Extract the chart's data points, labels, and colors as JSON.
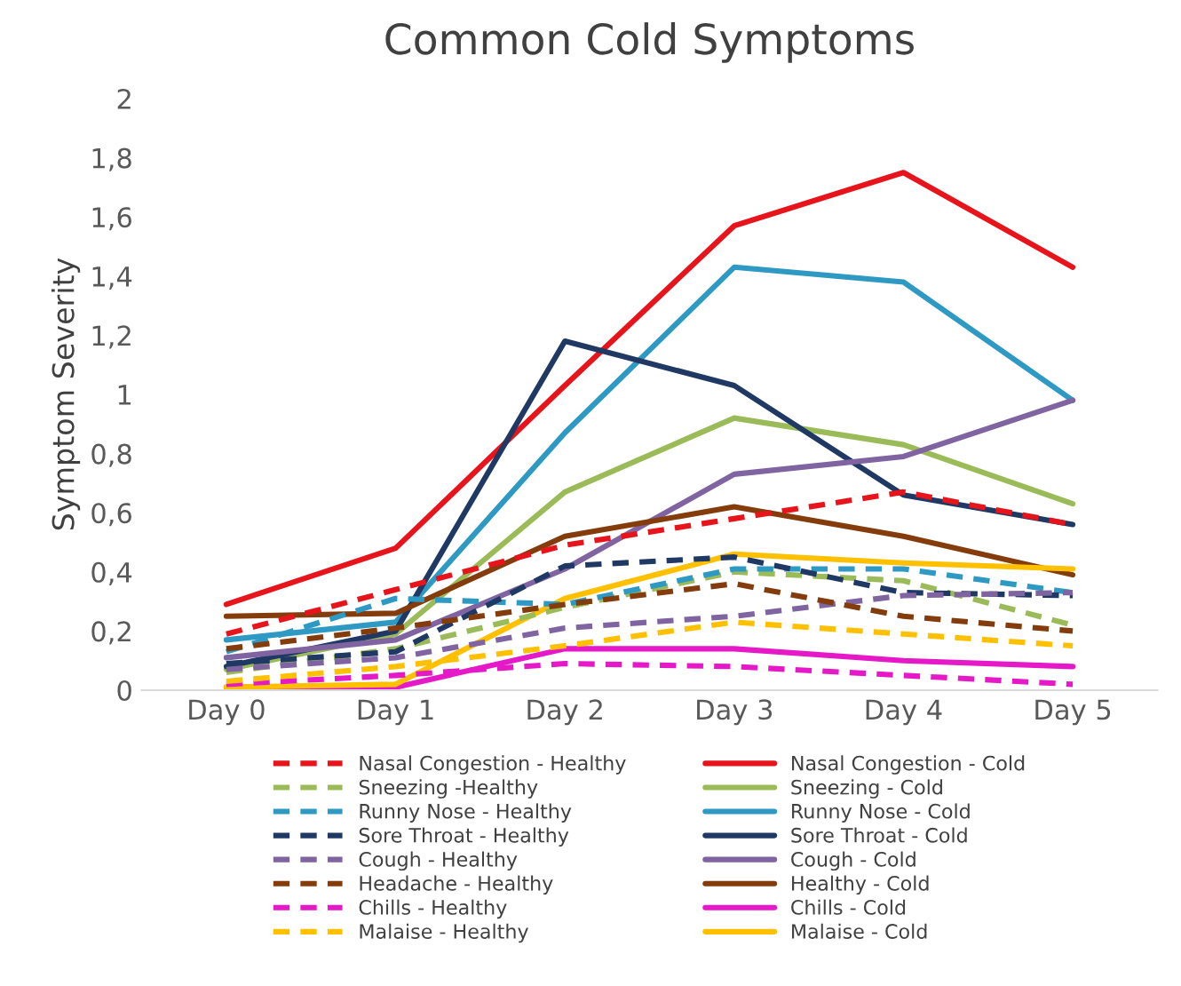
{
  "chart_data": {
    "type": "line",
    "title": "Common Cold Symptoms",
    "ylabel": "Symptom Severity",
    "categories": [
      "Day 0",
      "Day 1",
      "Day 2",
      "Day 3",
      "Day 4",
      "Day 5"
    ],
    "ylim": [
      0,
      2
    ],
    "yticks": [
      0,
      {
        "value": 0.2,
        "label": "0,2"
      },
      {
        "value": 0.4,
        "label": "0,4"
      },
      {
        "value": 0.6,
        "label": "0,6"
      },
      {
        "value": 0.8,
        "label": "0,8"
      },
      1,
      {
        "value": 1.2,
        "label": "1,2"
      },
      {
        "value": 1.4,
        "label": "1,4"
      },
      {
        "value": 1.6,
        "label": "1,6"
      },
      {
        "value": 1.8,
        "label": "1,8"
      },
      2
    ],
    "grid": false,
    "legend": "bottom",
    "marker": "none",
    "series": [
      {
        "name": "Nasal Congestion - Healthy",
        "color": "#e8141b",
        "line_style": "dashed",
        "values": [
          0.19,
          0.34,
          0.49,
          0.58,
          0.67,
          0.56
        ]
      },
      {
        "name": "Nasal Congestion - Cold",
        "color": "#e8141b",
        "line_style": "solid",
        "values": [
          0.29,
          0.48,
          1.03,
          1.57,
          1.75,
          1.43
        ]
      },
      {
        "name": "Sneezing -Healthy",
        "color": "#9bbb59",
        "line_style": "dashed",
        "values": [
          0.06,
          0.14,
          0.28,
          0.4,
          0.37,
          0.22
        ]
      },
      {
        "name": "Sneezing - Cold",
        "color": "#9bbb59",
        "line_style": "solid",
        "values": [
          0.07,
          0.19,
          0.67,
          0.92,
          0.83,
          0.63
        ]
      },
      {
        "name": "Runny Nose - Healthy",
        "color": "#2e9ac4",
        "line_style": "dashed",
        "values": [
          0.13,
          0.31,
          0.29,
          0.41,
          0.41,
          0.33
        ]
      },
      {
        "name": "Runny Nose - Cold",
        "color": "#2e9ac4",
        "line_style": "solid",
        "values": [
          0.17,
          0.23,
          0.87,
          1.43,
          1.38,
          0.98
        ]
      },
      {
        "name": "Sore Throat - Healthy",
        "color": "#1f3864",
        "line_style": "dashed",
        "values": [
          0.09,
          0.13,
          0.42,
          0.45,
          0.33,
          0.32
        ]
      },
      {
        "name": "Sore Throat - Cold",
        "color": "#1f3864",
        "line_style": "solid",
        "values": [
          0.08,
          0.2,
          1.18,
          1.03,
          0.66,
          0.56
        ]
      },
      {
        "name": "Cough - Healthy",
        "color": "#8064a2",
        "line_style": "dashed",
        "values": [
          0.07,
          0.11,
          0.21,
          0.25,
          0.32,
          0.33
        ]
      },
      {
        "name": "Cough - Cold",
        "color": "#8064a2",
        "line_style": "solid",
        "values": [
          0.11,
          0.17,
          0.41,
          0.73,
          0.79,
          0.98
        ]
      },
      {
        "name": "Headache - Healthy",
        "color": "#843c0c",
        "line_style": "dashed",
        "values": [
          0.14,
          0.21,
          0.29,
          0.36,
          0.25,
          0.2
        ]
      },
      {
        "name": "Healthy - Cold",
        "color": "#843c0c",
        "line_style": "solid",
        "values": [
          0.25,
          0.26,
          0.52,
          0.62,
          0.52,
          0.39
        ]
      },
      {
        "name": "Chills - Healthy",
        "color": "#e619c8",
        "line_style": "dashed",
        "values": [
          0.02,
          0.05,
          0.09,
          0.08,
          0.05,
          0.02
        ]
      },
      {
        "name": "Chills - Cold",
        "color": "#e619c8",
        "line_style": "solid",
        "values": [
          0.01,
          0.01,
          0.14,
          0.14,
          0.1,
          0.08
        ]
      },
      {
        "name": "Malaise - Healthy",
        "color": "#ffc000",
        "line_style": "dashed",
        "values": [
          0.03,
          0.08,
          0.15,
          0.23,
          0.19,
          0.15
        ]
      },
      {
        "name": "Malaise - Cold",
        "color": "#ffc000",
        "line_style": "solid",
        "values": [
          0.01,
          0.02,
          0.31,
          0.46,
          0.43,
          0.41
        ]
      }
    ]
  }
}
